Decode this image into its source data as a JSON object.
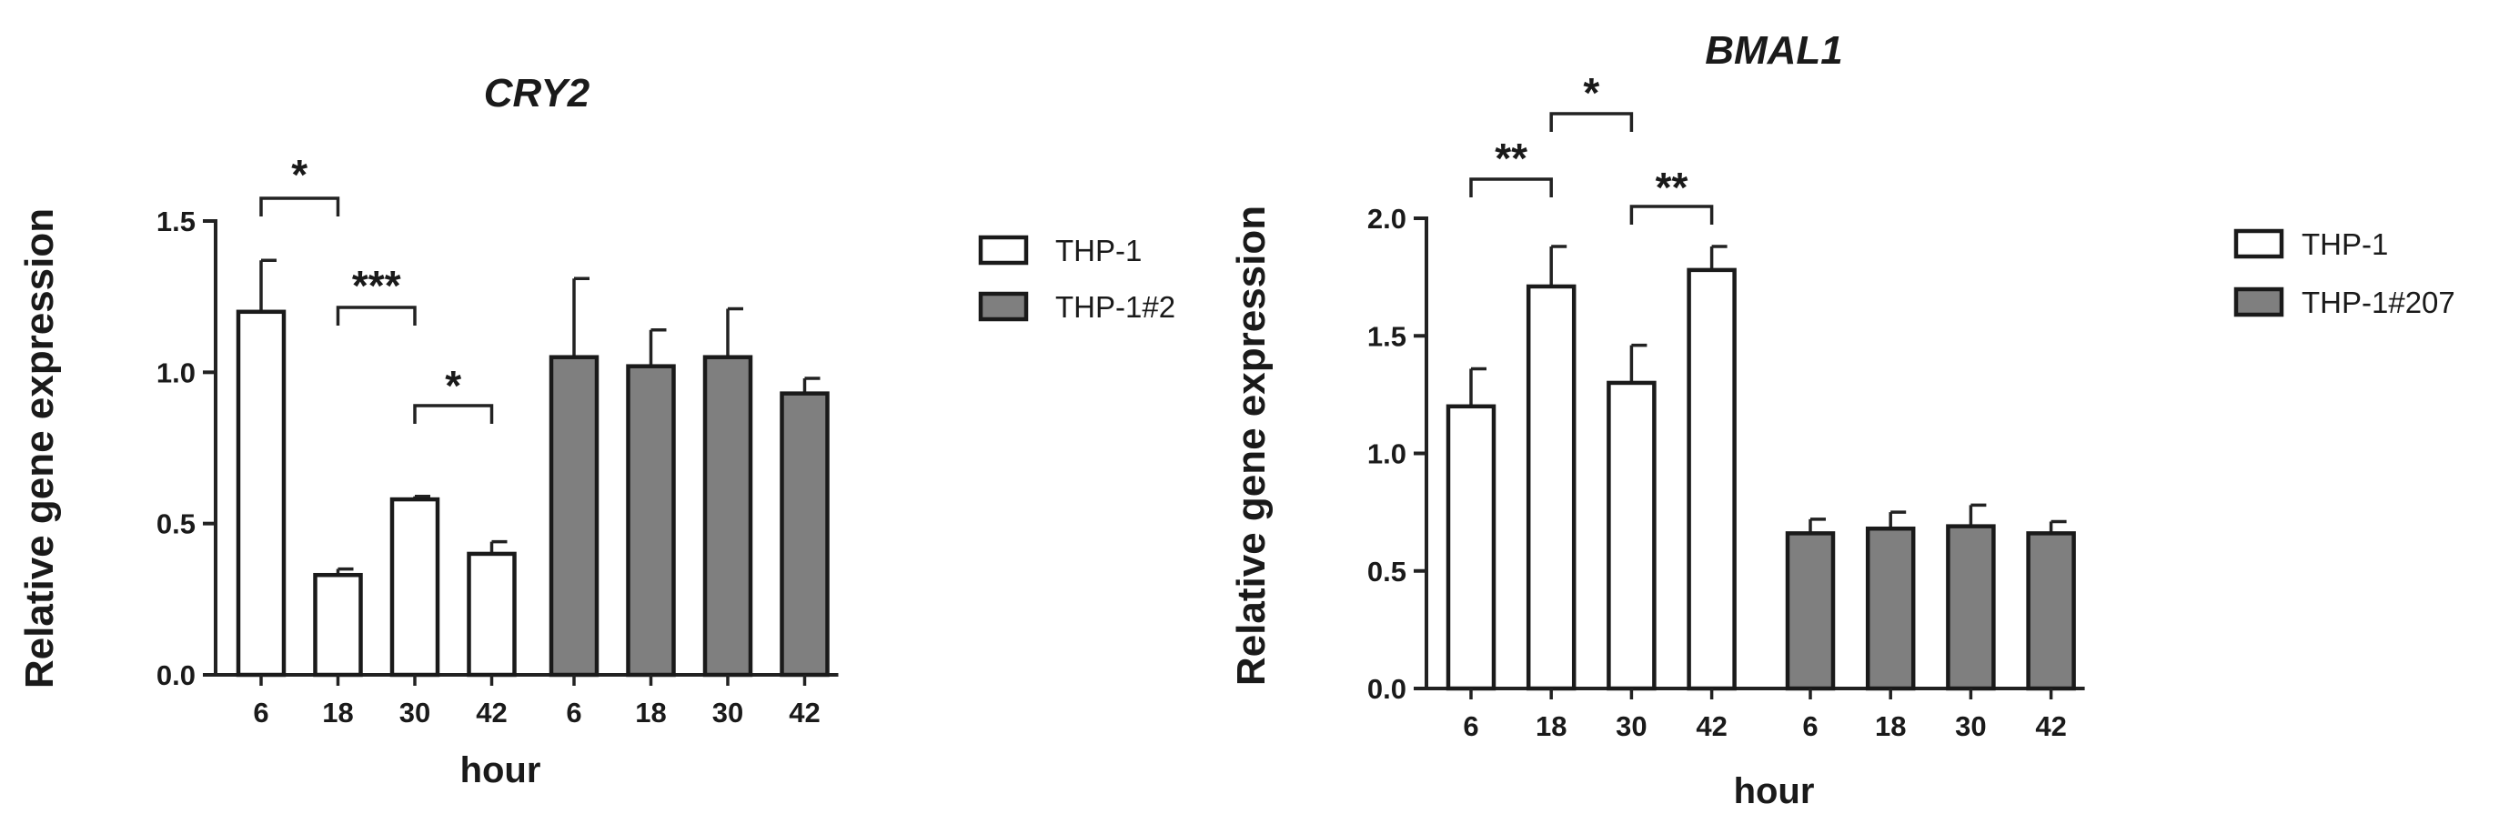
{
  "chart_data": [
    {
      "type": "bar",
      "title": "CRY2",
      "xlabel": "hour",
      "ylabel": "Relative gene expression",
      "ylim": [
        0,
        1.5
      ],
      "yticks": [
        "0.0",
        "0.5",
        "1.0",
        "1.5"
      ],
      "categories": [
        "6",
        "18",
        "30",
        "42"
      ],
      "legend_position": "right",
      "grid": false,
      "series": [
        {
          "name": "THP-1",
          "values": [
            1.2,
            0.33,
            0.58,
            0.4
          ],
          "errors": [
            0.17,
            0.02,
            0.01,
            0.04
          ],
          "color": "#ffffff"
        },
        {
          "name": "THP-1#2",
          "values": [
            1.05,
            1.02,
            1.05,
            0.93
          ],
          "errors": [
            0.26,
            0.12,
            0.16,
            0.05
          ],
          "color": "#7f7f7f"
        }
      ],
      "significance": [
        {
          "from": 0,
          "to": 1,
          "label": "*"
        },
        {
          "from": 1,
          "to": 2,
          "label": "***"
        },
        {
          "from": 2,
          "to": 3,
          "label": "*"
        }
      ]
    },
    {
      "type": "bar",
      "title": "BMAL1",
      "xlabel": "hour",
      "ylabel": "Relative gene expression",
      "ylim": [
        0,
        2.0
      ],
      "yticks": [
        "0.0",
        "0.5",
        "1.0",
        "1.5",
        "2.0"
      ],
      "categories": [
        "6",
        "18",
        "30",
        "42"
      ],
      "legend_position": "right",
      "grid": false,
      "series": [
        {
          "name": "THP-1",
          "values": [
            1.2,
            1.71,
            1.3,
            1.78
          ],
          "errors": [
            0.16,
            0.17,
            0.16,
            0.1
          ],
          "color": "#ffffff"
        },
        {
          "name": "THP-1#207",
          "values": [
            0.66,
            0.68,
            0.69,
            0.66
          ],
          "errors": [
            0.06,
            0.07,
            0.09,
            0.05
          ],
          "color": "#7f7f7f"
        }
      ],
      "significance": [
        {
          "from": 0,
          "to": 1,
          "label": "**"
        },
        {
          "from": 1,
          "to": 2,
          "label": "*"
        },
        {
          "from": 2,
          "to": 3,
          "label": "**"
        }
      ]
    }
  ]
}
